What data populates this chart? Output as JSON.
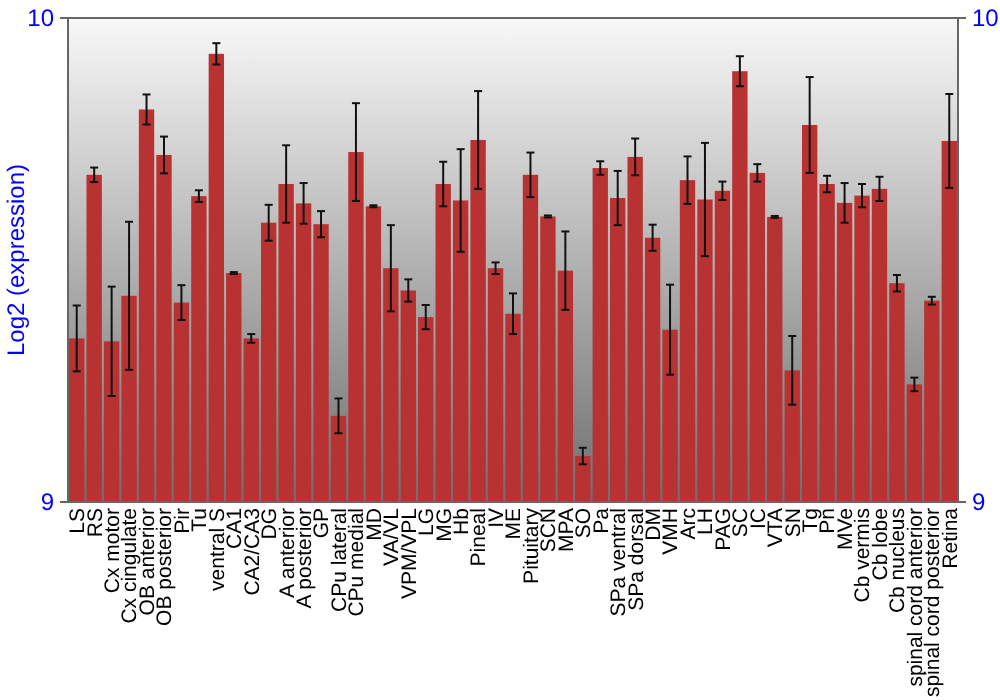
{
  "chart_data": {
    "type": "bar",
    "ylabel": "Log2 (expression)",
    "categories": [
      "LS",
      "RS",
      "Cx motor",
      "Cx cingulate",
      "OB anterior",
      "OB posterior",
      "Pir",
      "Tu",
      "ventral S",
      "CA1",
      "CA2/CA3",
      "DG",
      "A anterior",
      "A posterior",
      "GP",
      "CPu lateral",
      "CPu medial",
      "MD",
      "VA/VL",
      "VPM/VPL",
      "LG",
      "MG",
      "Hb",
      "Pineal",
      "IV",
      "ME",
      "Pituitary",
      "SCN",
      "MPA",
      "SO",
      "Pa",
      "SPa ventral",
      "SPa dorsal",
      "DM",
      "VMH",
      "Arc",
      "LH",
      "PAG",
      "SC",
      "IC",
      "VTA",
      "SN",
      "Tg",
      "Pn",
      "MVe",
      "Cb vermis",
      "Cb lobe",
      "Cb nucleus",
      "spinal cord anterior",
      "spinal cord posterior",
      "Retina"
    ],
    "values": [
      9.338,
      9.676,
      9.332,
      9.426,
      9.811,
      9.717,
      9.412,
      9.632,
      9.926,
      9.473,
      9.338,
      9.577,
      9.657,
      9.617,
      9.574,
      9.178,
      9.723,
      9.611,
      9.483,
      9.437,
      9.382,
      9.657,
      9.623,
      9.748,
      9.483,
      9.389,
      9.676,
      9.59,
      9.478,
      9.095,
      9.69,
      9.628,
      9.713,
      9.546,
      9.356,
      9.665,
      9.625,
      9.643,
      9.89,
      9.68,
      9.589,
      9.272,
      9.779,
      9.657,
      9.618,
      9.633,
      9.647,
      9.452,
      9.243,
      9.416,
      9.746
    ],
    "errors": [
      0.068,
      0.015,
      0.113,
      0.153,
      0.031,
      0.038,
      0.036,
      0.012,
      0.022,
      0.002,
      0.009,
      0.037,
      0.08,
      0.042,
      0.027,
      0.036,
      0.101,
      0.002,
      0.089,
      0.023,
      0.025,
      0.046,
      0.106,
      0.101,
      0.012,
      0.042,
      0.046,
      0.002,
      0.081,
      0.017,
      0.014,
      0.056,
      0.038,
      0.027,
      0.093,
      0.049,
      0.117,
      0.019,
      0.031,
      0.018,
      0.002,
      0.071,
      0.099,
      0.017,
      0.041,
      0.024,
      0.025,
      0.017,
      0.014,
      0.008,
      0.097
    ],
    "color": "#b83232",
    "ylim": [
      9,
      10
    ],
    "yticks": [
      9,
      10
    ],
    "y2lim": [
      9,
      10
    ],
    "y2ticks": [
      9,
      10
    ]
  }
}
